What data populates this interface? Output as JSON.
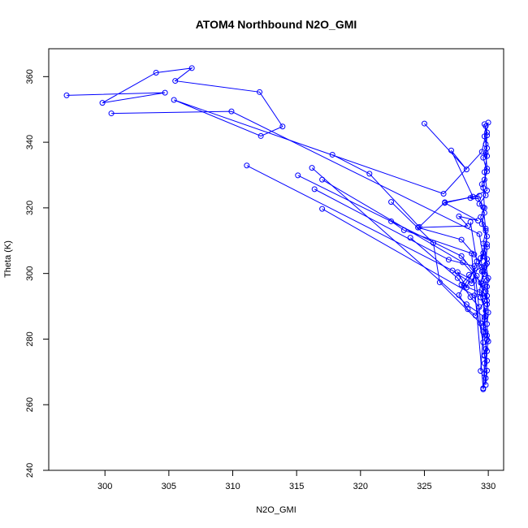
{
  "chart_data": {
    "type": "line",
    "title": "ATOM4 Northbound N2O_GMI",
    "xlabel": "N2O_GMI",
    "ylabel": "Theta (K)",
    "xlim": [
      295.6,
      331.2
    ],
    "ylim": [
      240,
      368.5
    ],
    "xticks": [
      300,
      305,
      310,
      315,
      320,
      325,
      330
    ],
    "yticks": [
      240,
      260,
      280,
      300,
      320,
      340,
      360
    ],
    "grid": false,
    "legend": "none",
    "markers": "open-circle",
    "color": "#0000ff",
    "series": [
      {
        "values": [
          [
            297.0,
            354.3
          ],
          [
            304.7,
            355.1
          ],
          [
            299.8,
            352.0
          ],
          [
            304.0,
            361.2
          ],
          [
            306.8,
            362.6
          ],
          [
            305.5,
            358.7
          ],
          [
            312.1,
            355.3
          ],
          [
            313.9,
            344.8
          ],
          [
            312.2,
            341.9
          ],
          [
            305.4,
            352.9
          ],
          [
            326.5,
            324.3
          ],
          [
            329.5,
            337.1
          ],
          [
            330.0,
            346.0
          ],
          [
            329.8,
            344.9
          ],
          [
            329.7,
            341.8
          ],
          [
            329.9,
            338.2
          ],
          [
            329.6,
            335.3
          ],
          [
            329.9,
            331.1
          ],
          [
            329.7,
            328.6
          ],
          [
            329.5,
            327.2
          ],
          [
            329.8,
            323.8
          ],
          [
            329.3,
            321.2
          ],
          [
            329.7,
            318.5
          ],
          [
            329.5,
            315.1
          ],
          [
            329.9,
            311.3
          ],
          [
            329.6,
            306.2
          ],
          [
            329.9,
            303.1
          ],
          [
            329.7,
            299.8
          ],
          [
            329.4,
            297.2
          ],
          [
            329.8,
            294.5
          ],
          [
            329.9,
            290.6
          ],
          [
            329.7,
            285.9
          ],
          [
            329.9,
            281.1
          ],
          [
            329.8,
            277.0
          ],
          [
            329.9,
            273.4
          ],
          [
            329.8,
            268.1
          ],
          [
            329.6,
            264.7
          ],
          [
            329.7,
            272.6
          ],
          [
            330.0,
            279.3
          ],
          [
            329.9,
            284.6
          ],
          [
            330.0,
            288.1
          ],
          [
            329.9,
            293.2
          ],
          [
            330.0,
            298.6
          ],
          [
            329.8,
            302.6
          ],
          [
            329.9,
            308.1
          ],
          [
            329.8,
            313.7
          ],
          [
            329.6,
            320.2
          ],
          [
            329.2,
            322.8
          ],
          [
            328.6,
            323.0
          ],
          [
            329.9,
            325.3
          ],
          [
            329.7,
            330.9
          ],
          [
            329.9,
            335.8
          ],
          [
            329.8,
            339.4
          ],
          [
            329.9,
            343.0
          ],
          [
            329.7,
            345.5
          ],
          [
            329.9,
            342.1
          ],
          [
            329.8,
            336.8
          ],
          [
            329.9,
            332.0
          ],
          [
            329.6,
            326.1
          ],
          [
            329.7,
            320.0
          ],
          [
            329.4,
            317.2
          ],
          [
            329.8,
            313.0
          ],
          [
            329.6,
            309.1
          ],
          [
            329.9,
            304.4
          ],
          [
            329.5,
            300.6
          ],
          [
            329.7,
            296.5
          ],
          [
            329.4,
            292.7
          ],
          [
            329.8,
            288.6
          ],
          [
            329.6,
            284.0
          ],
          [
            329.9,
            279.8
          ],
          [
            329.7,
            275.1
          ],
          [
            329.9,
            270.4
          ],
          [
            329.8,
            266.0
          ],
          [
            329.7,
            269.5
          ],
          [
            329.9,
            276.3
          ],
          [
            329.6,
            282.2
          ],
          [
            329.8,
            287.0
          ],
          [
            329.5,
            293.7
          ],
          [
            329.9,
            298.0
          ],
          [
            329.7,
            301.7
          ]
        ]
      },
      {
        "values": [
          [
            300.5,
            348.8
          ],
          [
            309.9,
            349.4
          ],
          [
            329.3,
            312.0
          ],
          [
            329.6,
            305.2
          ],
          [
            328.1,
            296.2
          ],
          [
            327.7,
            293.4
          ],
          [
            328.4,
            289.1
          ],
          [
            329.0,
            287.2
          ],
          [
            329.7,
            291.6
          ],
          [
            329.9,
            296.0
          ]
        ]
      },
      {
        "values": [
          [
            325.0,
            345.7
          ],
          [
            328.3,
            331.7
          ],
          [
            327.1,
            337.5
          ],
          [
            328.8,
            323.4
          ],
          [
            326.6,
            321.5
          ],
          [
            329.2,
            316.1
          ],
          [
            327.7,
            317.4
          ],
          [
            328.4,
            314.5
          ],
          [
            324.5,
            314.0
          ],
          [
            327.9,
            310.3
          ],
          [
            328.9,
            305.8
          ],
          [
            329.5,
            302.0
          ],
          [
            328.5,
            299.6
          ],
          [
            327.9,
            296.6
          ],
          [
            329.3,
            294.3
          ],
          [
            329.6,
            300.7
          ],
          [
            329.4,
            304.7
          ],
          [
            329.9,
            308.9
          ]
        ]
      },
      {
        "values": [
          [
            317.8,
            336.2
          ],
          [
            320.7,
            330.4
          ],
          [
            324.6,
            314.2
          ],
          [
            326.6,
            321.7
          ],
          [
            329.3,
            323.7
          ]
        ]
      },
      {
        "values": [
          [
            316.2,
            332.2
          ],
          [
            328.3,
            290.6
          ],
          [
            329.7,
            286.7
          ],
          [
            329.4,
            270.3
          ]
        ]
      },
      {
        "values": [
          [
            311.1,
            332.9
          ],
          [
            327.2,
            300.9
          ],
          [
            328.7,
            297.0
          ],
          [
            329.7,
            306.9
          ]
        ]
      },
      {
        "values": [
          [
            315.1,
            329.9
          ],
          [
            327.9,
            305.3
          ],
          [
            329.1,
            299.3
          ],
          [
            329.9,
            291.7
          ]
        ]
      },
      {
        "values": [
          [
            317.0,
            328.6
          ],
          [
            328.0,
            303.4
          ],
          [
            329.5,
            296.9
          ],
          [
            329.8,
            282.2
          ]
        ]
      },
      {
        "values": [
          [
            316.4,
            325.7
          ],
          [
            326.9,
            304.2
          ],
          [
            328.9,
            302.2
          ],
          [
            329.7,
            274.9
          ]
        ]
      },
      {
        "values": [
          [
            322.4,
            321.8
          ],
          [
            325.7,
            309.3
          ],
          [
            326.2,
            297.3
          ],
          [
            329.4,
            284.8
          ]
        ]
      },
      {
        "values": [
          [
            317.0,
            319.7
          ],
          [
            328.9,
            293.3
          ],
          [
            329.6,
            279.0
          ]
        ]
      },
      {
        "values": [
          [
            322.4,
            315.9
          ],
          [
            323.4,
            313.2
          ],
          [
            328.7,
            306.1
          ],
          [
            329.6,
            265.0
          ]
        ]
      },
      {
        "values": [
          [
            323.9,
            310.9
          ],
          [
            327.6,
            298.6
          ],
          [
            328.6,
            292.8
          ],
          [
            329.3,
            289.8
          ]
        ]
      },
      {
        "values": [
          [
            328.6,
            315.7
          ],
          [
            329.1,
            303.7
          ],
          [
            328.3,
            295.7
          ],
          [
            327.6,
            300.4
          ],
          [
            328.9,
            297.8
          ]
        ]
      }
    ]
  }
}
